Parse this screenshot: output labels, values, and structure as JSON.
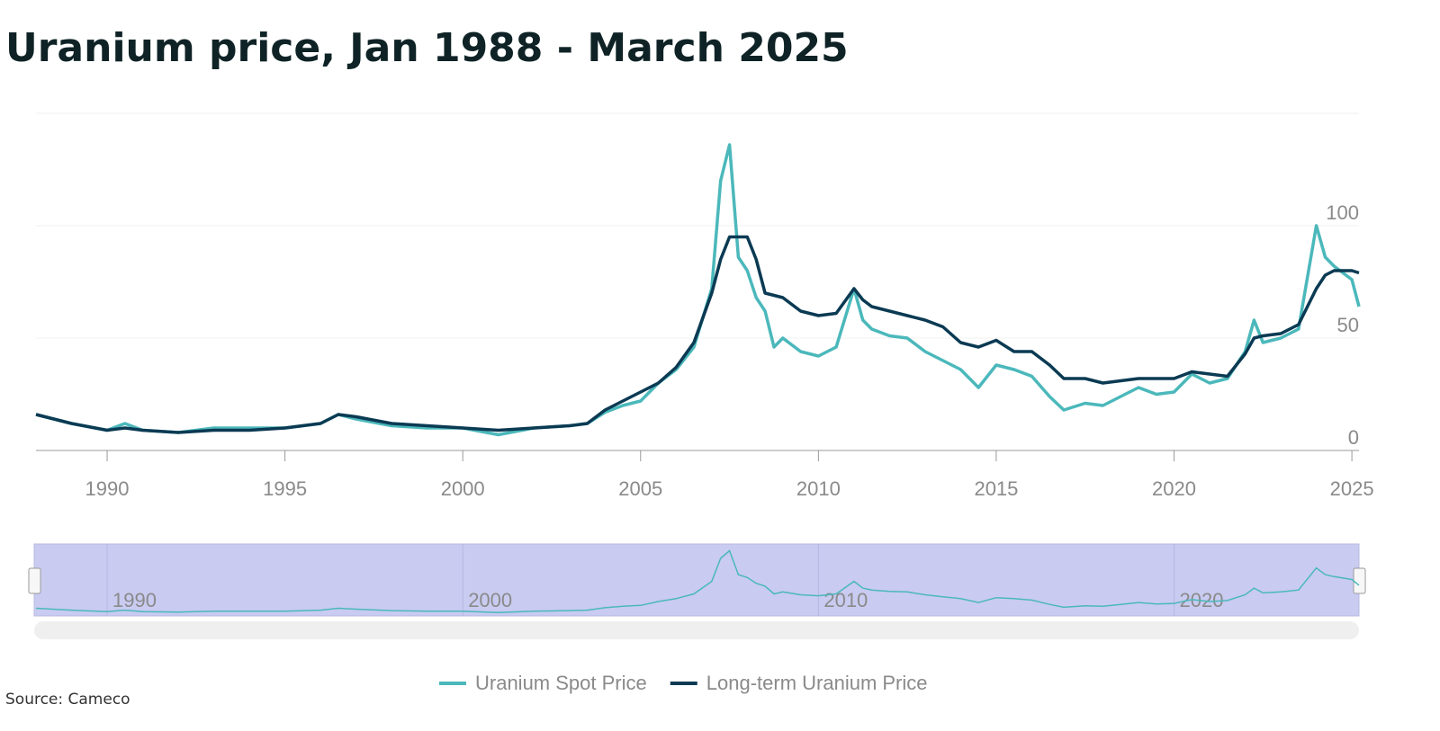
{
  "chart_data": {
    "type": "line",
    "title": "Uranium price, Jan 1988 - March 2025",
    "source": "Source: Cameco",
    "x": [
      1988,
      1989,
      1990,
      1990.5,
      1991,
      1992,
      1993,
      1994,
      1995,
      1996,
      1996.5,
      1997,
      1998,
      1999,
      2000,
      2001,
      2002,
      2003,
      2003.5,
      2004,
      2004.5,
      2005,
      2005.5,
      2006,
      2006.5,
      2007,
      2007.25,
      2007.5,
      2007.75,
      2008,
      2008.25,
      2008.5,
      2008.75,
      2009,
      2009.5,
      2010,
      2010.5,
      2011,
      2011.25,
      2011.5,
      2012,
      2012.5,
      2013,
      2013.5,
      2014,
      2014.5,
      2015,
      2015.5,
      2016,
      2016.5,
      2016.9,
      2017.5,
      2018,
      2018.5,
      2019,
      2019.5,
      2020,
      2020.5,
      2021,
      2021.5,
      2022,
      2022.25,
      2022.5,
      2023,
      2023.5,
      2024,
      2024.25,
      2024.5,
      2025,
      2025.2
    ],
    "series": [
      {
        "name": "Uranium Spot Price",
        "color": "#4bb8bb",
        "values": [
          16,
          12,
          9,
          12,
          9,
          8,
          10,
          10,
          10,
          12,
          16,
          14,
          11,
          10,
          10,
          7,
          10,
          11,
          12,
          17,
          20,
          22,
          30,
          36,
          46,
          72,
          120,
          136,
          86,
          80,
          68,
          62,
          46,
          50,
          44,
          42,
          46,
          72,
          58,
          54,
          51,
          50,
          44,
          40,
          36,
          28,
          38,
          36,
          33,
          24,
          18,
          21,
          20,
          24,
          28,
          25,
          26,
          34,
          30,
          32,
          44,
          58,
          48,
          50,
          54,
          100,
          86,
          82,
          76,
          64
        ]
      },
      {
        "name": "Long-term Uranium Price",
        "color": "#0b3a53",
        "values": [
          16,
          12,
          9,
          10,
          9,
          8,
          9,
          9,
          10,
          12,
          16,
          15,
          12,
          11,
          10,
          9,
          10,
          11,
          12,
          18,
          22,
          26,
          30,
          37,
          48,
          70,
          85,
          95,
          95,
          95,
          85,
          70,
          69,
          68,
          62,
          60,
          61,
          72,
          67,
          64,
          62,
          60,
          58,
          55,
          48,
          46,
          49,
          44,
          44,
          38,
          32,
          32,
          30,
          31,
          32,
          32,
          32,
          35,
          34,
          33,
          43,
          50,
          51,
          52,
          56,
          72,
          78,
          80,
          80,
          79
        ]
      }
    ],
    "xlim": [
      1988,
      2025.2
    ],
    "xticks": [
      1990,
      1995,
      2000,
      2005,
      2010,
      2015,
      2020,
      2025
    ],
    "ylim": [
      0,
      150
    ],
    "yticks": [
      0,
      50,
      100
    ],
    "navigator_xticks": [
      1990,
      2000,
      2010,
      2020
    ],
    "grid": true
  }
}
